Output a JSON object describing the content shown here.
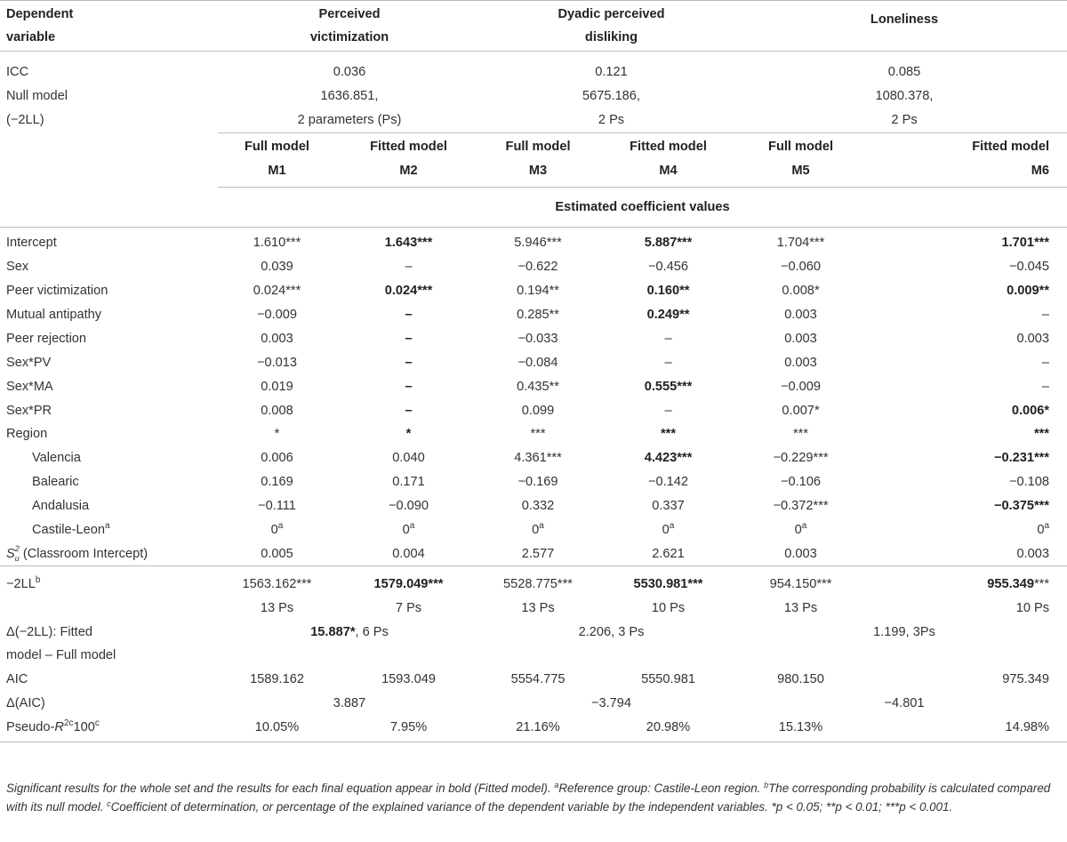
{
  "header": {
    "dependent_variable": [
      "Dependent",
      "variable"
    ],
    "groups": [
      [
        "Perceived",
        "victimization"
      ],
      [
        "Dyadic perceived",
        "disliking"
      ],
      [
        "Loneliness"
      ]
    ]
  },
  "icc": {
    "label": "ICC",
    "values": [
      "0.036",
      "0.121",
      "0.085"
    ]
  },
  "null_model": {
    "label": [
      "Null model",
      "(−2LL)"
    ],
    "values": [
      [
        "1636.851,",
        "2 parameters (Ps)"
      ],
      [
        "5675.186,",
        "2 Ps"
      ],
      [
        "1080.378,",
        "2 Ps"
      ]
    ]
  },
  "models": [
    {
      "type": "Full model",
      "name": "M1"
    },
    {
      "type": "Fitted model",
      "name": "M2"
    },
    {
      "type": "Full model",
      "name": "M3"
    },
    {
      "type": "Fitted model",
      "name": "M4"
    },
    {
      "type": "Full model",
      "name": "M5"
    },
    {
      "type": "Fitted model",
      "name": "M6"
    }
  ],
  "coef_header": "Estimated coefficient values",
  "coef_rows": [
    {
      "label": "Intercept",
      "cells": [
        {
          "v": "1.610",
          "s": "***"
        },
        {
          "v": "1.643***",
          "bold": true
        },
        {
          "v": "5.946",
          "s": "***"
        },
        {
          "v": "5.887***",
          "bold": true
        },
        {
          "v": "1.704",
          "s": "***"
        },
        {
          "v": "1.701***",
          "bold": true
        }
      ]
    },
    {
      "label": "Sex",
      "cells": [
        {
          "v": "0.039"
        },
        {
          "v": "–"
        },
        {
          "v": "−0.622"
        },
        {
          "v": "−0.456"
        },
        {
          "v": "−0.060"
        },
        {
          "v": "−0.045"
        }
      ]
    },
    {
      "label": "Peer victimization",
      "cells": [
        {
          "v": "0.024",
          "s": "***"
        },
        {
          "v": "0.024***",
          "bold": true
        },
        {
          "v": "0.194",
          "s": "**"
        },
        {
          "v": "0.160**",
          "bold": true
        },
        {
          "v": "0.008",
          "s": "*"
        },
        {
          "v": "0.009**",
          "bold": true
        }
      ]
    },
    {
      "label": "Mutual antipathy",
      "cells": [
        {
          "v": "−0.009"
        },
        {
          "v": "–",
          "bold": true
        },
        {
          "v": "0.285",
          "s": "**"
        },
        {
          "v": "0.249**",
          "bold": true
        },
        {
          "v": "0.003"
        },
        {
          "v": "–"
        }
      ]
    },
    {
      "label": "Peer rejection",
      "cells": [
        {
          "v": "0.003"
        },
        {
          "v": "–",
          "bold": true
        },
        {
          "v": "−0.033"
        },
        {
          "v": "–"
        },
        {
          "v": "0.003"
        },
        {
          "v": "0.003"
        }
      ]
    },
    {
      "label": "Sex*PV",
      "cells": [
        {
          "v": "−0.013"
        },
        {
          "v": "–",
          "bold": true
        },
        {
          "v": "−0.084"
        },
        {
          "v": "–"
        },
        {
          "v": "0.003"
        },
        {
          "v": "–"
        }
      ]
    },
    {
      "label": "Sex*MA",
      "cells": [
        {
          "v": "0.019"
        },
        {
          "v": "–",
          "bold": true
        },
        {
          "v": "0.435",
          "s": "**"
        },
        {
          "v": "0.555***",
          "bold": true
        },
        {
          "v": "−0.009"
        },
        {
          "v": "–"
        }
      ]
    },
    {
      "label": "Sex*PR",
      "cells": [
        {
          "v": "0.008"
        },
        {
          "v": "–",
          "bold": true
        },
        {
          "v": "0.099"
        },
        {
          "v": "–"
        },
        {
          "v": "0.007",
          "s": "*"
        },
        {
          "v": "0.006*",
          "bold": true
        }
      ]
    },
    {
      "label": "Region",
      "cells": [
        {
          "v": "*"
        },
        {
          "v": "*",
          "bold": true
        },
        {
          "v": "***"
        },
        {
          "v": "***",
          "bold": true
        },
        {
          "v": "***"
        },
        {
          "v": "***",
          "bold": true
        }
      ]
    },
    {
      "label": "Valencia",
      "indent": true,
      "cells": [
        {
          "v": "0.006"
        },
        {
          "v": "0.040"
        },
        {
          "v": "4.361",
          "s": "***"
        },
        {
          "v": "4.423***",
          "bold": true
        },
        {
          "v": "−0.229",
          "s": "***"
        },
        {
          "v": "−0.231***",
          "bold": true
        }
      ]
    },
    {
      "label": "Balearic",
      "indent": true,
      "cells": [
        {
          "v": "0.169"
        },
        {
          "v": "0.171"
        },
        {
          "v": "−0.169"
        },
        {
          "v": "−0.142"
        },
        {
          "v": "−0.106"
        },
        {
          "v": "−0.108"
        }
      ]
    },
    {
      "label": "Andalusia",
      "indent": true,
      "cells": [
        {
          "v": "−0.111"
        },
        {
          "v": "−0.090"
        },
        {
          "v": "0.332"
        },
        {
          "v": "0.337"
        },
        {
          "v": "−0.372",
          "s": "***"
        },
        {
          "v": "−0.375***",
          "bold": true
        }
      ]
    },
    {
      "label": "Castile-Leon",
      "sup": "a",
      "indent": true,
      "cells": [
        {
          "v": "0",
          "sup": "a"
        },
        {
          "v": "0",
          "sup": "a"
        },
        {
          "v": "0",
          "sup": "a"
        },
        {
          "v": "0",
          "sup": "a"
        },
        {
          "v": "0",
          "sup": "a"
        },
        {
          "v": "0",
          "sup": "a"
        }
      ]
    },
    {
      "label": "(Classroom Intercept)",
      "prefix": "S",
      "cells": [
        {
          "v": "0.005"
        },
        {
          "v": "0.004"
        },
        {
          "v": "2.577"
        },
        {
          "v": "2.621"
        },
        {
          "v": "0.003"
        },
        {
          "v": "0.003"
        }
      ]
    }
  ],
  "minus2ll": {
    "label": "−2LL",
    "label_sup": "b",
    "values": [
      {
        "v": "1563.162",
        "s": "***"
      },
      {
        "v": "1579.049***",
        "bold": true
      },
      {
        "v": "5528.775",
        "s": "***"
      },
      {
        "v": "5530.981***",
        "bold": true
      },
      {
        "v": "954.150",
        "s": "***"
      },
      {
        "v": "955.349",
        "bold": true,
        "s": "***"
      }
    ],
    "params": [
      "13 Ps",
      "7 Ps",
      "13 Ps",
      "10 Ps",
      "13 Ps",
      "10 Ps"
    ]
  },
  "delta2ll": {
    "label": [
      "Δ(−2LL): Fitted",
      "model – Full model"
    ],
    "values": [
      {
        "bold": "15.887*",
        "rest": ", 6 Ps"
      },
      {
        "rest": "2.206, 3 Ps"
      },
      {
        "rest": "1.199, 3Ps"
      }
    ]
  },
  "aic": {
    "label": "AIC",
    "values": [
      "1589.162",
      "1593.049",
      "5554.775",
      "5550.981",
      "980.150",
      "975.349"
    ]
  },
  "delta_aic": {
    "label": "Δ(AIC)",
    "values": [
      "3.887",
      "−3.794",
      "−4.801"
    ]
  },
  "pseudo_r2": {
    "label_pre": "Pseudo-",
    "label_r": "R",
    "label_sup": "2c",
    "label_post": "100",
    "label_post_sup": "c",
    "values": [
      "10.05%",
      "7.95%",
      "21.16%",
      "20.98%",
      "15.13%",
      "14.98%"
    ]
  },
  "footnote": {
    "text1": "Significant results for the whole set and the results for each final equation appear in bold (Fitted model). ",
    "text2": "Reference group: Castile-Leon region. ",
    "text3": "The corresponding probability is calculated compared with its null model. ",
    "text4": "Coefficient of determination, or percentage of the explained variance of the dependent variable by the independent variables. ",
    "text5": "*p < 0.05; **p < 0.01; ***p < 0.001."
  }
}
